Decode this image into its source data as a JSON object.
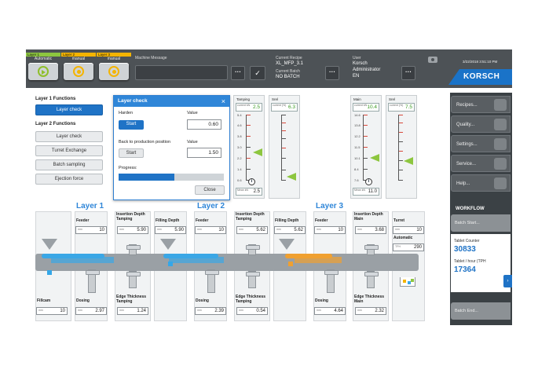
{
  "topbar": {
    "layers": [
      {
        "label": "Layer 1",
        "mode": "Automatic",
        "color": "#8dc63f"
      },
      {
        "label": "Layer 2",
        "mode": "manual",
        "color": "#f4b400"
      },
      {
        "label": "Layer 3",
        "mode": "manual",
        "color": "#f4b400"
      }
    ],
    "machine_message_label": "Machine Message",
    "recipe_label": "Current Recipe",
    "recipe_value": "XL_MFP_3.1",
    "batch_label": "Current Batch",
    "batch_value": "NO BATCH",
    "user_label": "User",
    "user_name": "Korsch",
    "user_role": "Administrator",
    "user_lang": "EN",
    "datetime": "3/22/2018 3:51:10 PM",
    "logo": "KORSCH"
  },
  "functions": {
    "layer1_title": "Layer 1 Functions",
    "layer1_check": "Layer check",
    "layer2_title": "Layer 2 Functions",
    "layer2_items": [
      "Layer check",
      "Turret Exchange",
      "Batch sampling",
      "Ejection force"
    ]
  },
  "dialog": {
    "title": "Layer check",
    "close_icon": "×",
    "harden_label": "Harden",
    "value_label": "Value",
    "start_label": "Start",
    "harden_value": "0.60",
    "back_label": "Back to production position",
    "back_value_label": "Value",
    "back_start_label": "Start",
    "back_value": "1.50",
    "progress_label": "Progress:",
    "progress": 0.53,
    "close_label": "Close"
  },
  "gauges": {
    "tamping": {
      "title": "Tamping",
      "current_small": "current kN",
      "current": "2.5",
      "ticks": [
        "5.4",
        "4.6",
        "3.8",
        "3.0",
        "2.2",
        "1.4",
        "0.6"
      ],
      "bot_small": "Mean kN",
      "bottom": "2.5"
    },
    "srel1": {
      "title": "Srel",
      "current_small": "current (%)",
      "current": "6.3",
      "ticks": []
    },
    "main": {
      "title": "Main",
      "current_small": "current kN",
      "current": "10.4",
      "ticks": [
        "14.6",
        "13.8",
        "12.2",
        "11.5",
        "10.1",
        "8.4",
        "7.6"
      ],
      "bot_small": "Mean kN",
      "bottom": "11.0"
    },
    "srel2": {
      "title": "Srel",
      "current_small": "current (%)",
      "current": "7.5",
      "ticks": []
    }
  },
  "right": {
    "buttons": [
      "Recipes...",
      "Quality...",
      "Settings...",
      "Service...",
      "Help..."
    ],
    "workflow_label": "WORKFLOW",
    "batch_start": "Batch Start...",
    "tablet_counter_label": "Tablet Counter",
    "tablet_counter": "30833",
    "tablets_hour_label": "Tablet / hour (TPH",
    "tablets_hour": "17364",
    "batch_end": "Batch End..."
  },
  "process": {
    "layer1": "Layer 1",
    "layer2": "Layer 2",
    "layer3": "Layer 3",
    "fillcam_label": "Fillcam",
    "fillcam": "10",
    "l1_feeder_label": "Feeder",
    "l1_feeder": "10",
    "l1_dosing_label": "Dosing",
    "l1_dosing": "2.97",
    "l1_ins_label": "Insertion Depth Tamping",
    "l1_ins": "5.90",
    "l1_edge_label": "Edge Thickness Tamping",
    "l1_edge": "1.24",
    "l1_fill_label": "Filling Depth",
    "l1_fill": "5.90",
    "l2_feeder_label": "Feeder",
    "l2_feeder": "10",
    "l2_dosing_label": "Dosing",
    "l2_dosing": "2.39",
    "l2_ins_label": "Insertion Depth Tamping",
    "l2_ins": "5.62",
    "l2_edge_label": "Edge Thickness Tamping",
    "l2_edge": "0.54",
    "l2_fill_label": "Filling Depth",
    "l2_fill": "5.62",
    "l3_feeder_label": "Feeder",
    "l3_feeder": "10",
    "l3_dosing_label": "Dosing",
    "l3_dosing": "4.64",
    "l3_ins_label": "Insertion Depth Main",
    "l3_ins": "3.68",
    "l3_edge_label": "Edge Thickness Main",
    "l3_edge": "2.32",
    "turret_label": "Turret",
    "turret": "10",
    "automatic_label": "Automatic",
    "automatic": "290"
  }
}
